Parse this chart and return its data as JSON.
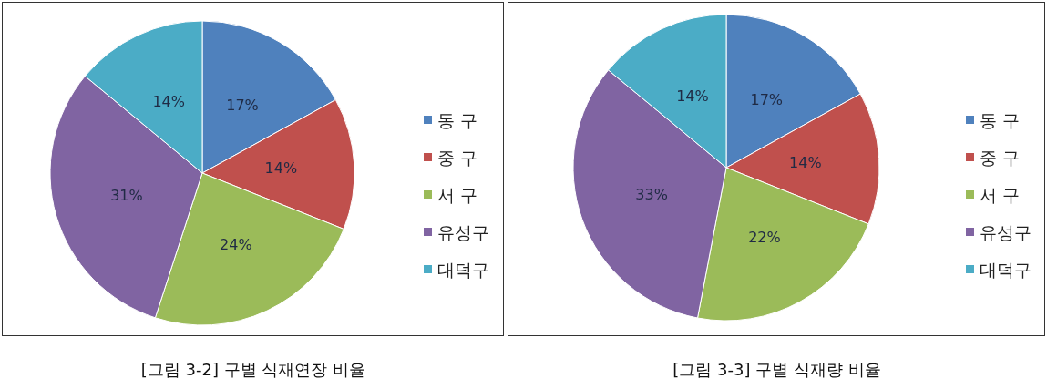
{
  "chart_data": [
    {
      "type": "pie",
      "title": "[그림 3-2] 구별 식재연장 비율",
      "categories": [
        "동 구",
        "중 구",
        "서 구",
        "유성구",
        "대덕구"
      ],
      "values": [
        17,
        14,
        24,
        31,
        14
      ],
      "value_labels": [
        "17%",
        "14%",
        "24%",
        "31%",
        "14%"
      ],
      "colors": [
        "#4f81bd",
        "#c0504d",
        "#9bbb59",
        "#8064a2",
        "#4bacc6"
      ],
      "legend": "right"
    },
    {
      "type": "pie",
      "title": "[그림 3-3] 구별 식재량 비율",
      "categories": [
        "동 구",
        "중 구",
        "서 구",
        "유성구",
        "대덕구"
      ],
      "values": [
        17,
        14,
        22,
        33,
        14
      ],
      "value_labels": [
        "17%",
        "14%",
        "22%",
        "33%",
        "14%"
      ],
      "colors": [
        "#4f81bd",
        "#c0504d",
        "#9bbb59",
        "#8064a2",
        "#4bacc6"
      ],
      "legend": "right"
    }
  ]
}
